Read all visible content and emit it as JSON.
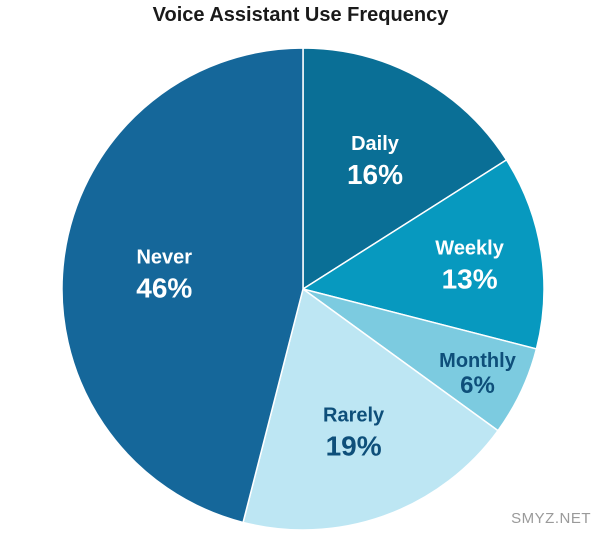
{
  "chart_data": {
    "type": "pie",
    "title": "Voice Assistant Use Frequency",
    "slices": [
      {
        "label": "Daily",
        "value": 16,
        "display": "16%",
        "color": "#0a6f96",
        "text_color": "#ffffff"
      },
      {
        "label": "Weekly",
        "value": 13,
        "display": "13%",
        "color": "#0799bf",
        "text_color": "#ffffff"
      },
      {
        "label": "Monthly",
        "value": 6,
        "display": "6%",
        "color": "#7ccbe0",
        "text_color": "#0e4f7a"
      },
      {
        "label": "Rarely",
        "value": 19,
        "display": "19%",
        "color": "#bde6f3",
        "text_color": "#0e4f7a"
      },
      {
        "label": "Never",
        "value": 46,
        "display": "46%",
        "color": "#15679a",
        "text_color": "#ffffff"
      }
    ],
    "start": "top",
    "direction": "clockwise"
  },
  "watermark": "SMYZ.NET"
}
